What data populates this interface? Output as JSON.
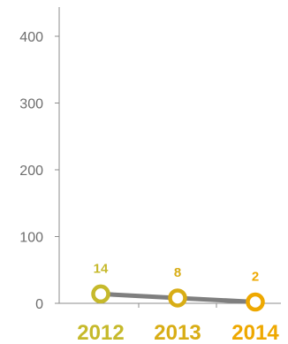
{
  "chart_data": {
    "type": "line",
    "categories": [
      "2012",
      "2013",
      "2014"
    ],
    "series": [
      {
        "values": [
          14,
          8,
          2
        ]
      }
    ],
    "y_ticks": [
      "0",
      "100",
      "200",
      "300",
      "400"
    ],
    "ylim": [
      0,
      450
    ],
    "grid": false,
    "colors": {
      "line": "#7f7f7f",
      "axis": "#8c8c8c",
      "point_colors": [
        "#c6b92b",
        "#d8ad15",
        "#eea800"
      ],
      "label_colors": [
        "#c6b92b",
        "#d8ad15",
        "#eea800"
      ]
    }
  }
}
